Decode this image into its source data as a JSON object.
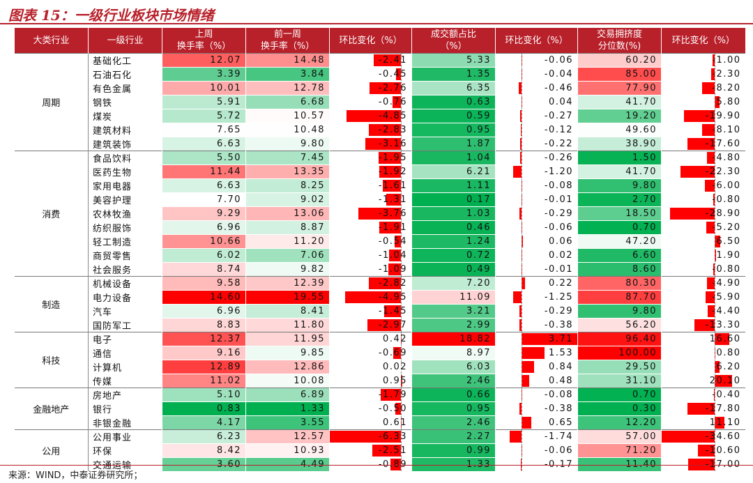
{
  "title": "图表 15：一级行业板块市场情绪",
  "source": "来源：WIND，中泰证券研究所；",
  "colors": {
    "accent": "#b8202a",
    "bar": "#ff0000"
  },
  "headers": [
    {
      "line1": "大类行业",
      "line2": ""
    },
    {
      "line1": "一级行业",
      "line2": ""
    },
    {
      "line1": "上周",
      "line2": "换手率（%）"
    },
    {
      "line1": "前一周",
      "line2": "换手率（%）"
    },
    {
      "line1": "环比变化（%）",
      "line2": ""
    },
    {
      "line1": "成交额占比",
      "line2": "（%）"
    },
    {
      "line1": "环比变化（%）",
      "line2": ""
    },
    {
      "line1": "交易拥挤度",
      "line2": "分位数(%)"
    },
    {
      "line1": "环比变化（%）",
      "line2": ""
    }
  ],
  "groups": [
    {
      "name": "周期",
      "rows": [
        {
          "name": "基础化工",
          "t1": "12.07",
          "t2": "14.48",
          "c1": "-2.41",
          "s": "5.33",
          "c2": "-0.06",
          "cr": "60.20",
          "c3": "-1.00"
        },
        {
          "name": "石油石化",
          "t1": "3.39",
          "t2": "3.84",
          "c1": "-0.45",
          "s": "1.35",
          "c2": "-0.04",
          "cr": "85.00",
          "c3": "-2.30"
        },
        {
          "name": "有色金属",
          "t1": "10.01",
          "t2": "12.78",
          "c1": "-2.76",
          "s": "6.35",
          "c2": "-0.46",
          "cr": "77.90",
          "c3": "-8.20"
        },
        {
          "name": "钢铁",
          "t1": "5.91",
          "t2": "6.68",
          "c1": "-0.76",
          "s": "0.63",
          "c2": "0.04",
          "cr": "41.70",
          "c3": "5.80"
        },
        {
          "name": "煤炭",
          "t1": "5.72",
          "t2": "10.57",
          "c1": "-4.85",
          "s": "0.59",
          "c2": "-0.27",
          "cr": "19.20",
          "c3": "-19.90"
        },
        {
          "name": "建筑材料",
          "t1": "7.65",
          "t2": "10.48",
          "c1": "-2.83",
          "s": "0.95",
          "c2": "-0.12",
          "cr": "49.60",
          "c3": "-8.10"
        },
        {
          "name": "建筑装饰",
          "t1": "6.63",
          "t2": "9.80",
          "c1": "-3.16",
          "s": "1.87",
          "c2": "-0.22",
          "cr": "38.90",
          "c3": "-17.60"
        }
      ]
    },
    {
      "name": "消费",
      "rows": [
        {
          "name": "食品饮料",
          "t1": "5.50",
          "t2": "7.45",
          "c1": "-1.95",
          "s": "1.04",
          "c2": "-0.26",
          "cr": "1.50",
          "c3": "-4.80"
        },
        {
          "name": "医药生物",
          "t1": "11.44",
          "t2": "13.35",
          "c1": "-1.92",
          "s": "6.21",
          "c2": "-1.20",
          "cr": "41.70",
          "c3": "-22.30"
        },
        {
          "name": "家用电器",
          "t1": "6.63",
          "t2": "8.25",
          "c1": "-1.61",
          "s": "1.11",
          "c2": "-0.08",
          "cr": "9.80",
          "c3": "-6.00"
        },
        {
          "name": "美容护理",
          "t1": "7.70",
          "t2": "9.02",
          "c1": "-1.31",
          "s": "0.17",
          "c2": "-0.01",
          "cr": "2.70",
          "c3": "-0.80"
        },
        {
          "name": "农林牧渔",
          "t1": "9.29",
          "t2": "13.06",
          "c1": "-3.76",
          "s": "1.03",
          "c2": "-0.29",
          "cr": "18.50",
          "c3": "-28.90"
        },
        {
          "name": "纺织服饰",
          "t1": "6.96",
          "t2": "8.87",
          "c1": "-1.91",
          "s": "0.46",
          "c2": "-0.06",
          "cr": "0.70",
          "c3": "-5.20"
        },
        {
          "name": "轻工制造",
          "t1": "10.66",
          "t2": "11.20",
          "c1": "-0.54",
          "s": "1.24",
          "c2": "0.06",
          "cr": "47.20",
          "c3": "6.50"
        },
        {
          "name": "商贸零售",
          "t1": "6.02",
          "t2": "7.06",
          "c1": "-1.04",
          "s": "0.72",
          "c2": "0.02",
          "cr": "6.60",
          "c3": "1.90"
        },
        {
          "name": "社会服务",
          "t1": "8.74",
          "t2": "9.82",
          "c1": "-1.09",
          "s": "0.49",
          "c2": "-0.01",
          "cr": "8.60",
          "c3": "-0.80"
        }
      ]
    },
    {
      "name": "制造",
      "rows": [
        {
          "name": "机械设备",
          "t1": "9.58",
          "t2": "12.39",
          "c1": "-2.82",
          "s": "7.20",
          "c2": "0.22",
          "cr": "80.30",
          "c3": "-4.90"
        },
        {
          "name": "电力设备",
          "t1": "14.60",
          "t2": "19.55",
          "c1": "-4.95",
          "s": "11.09",
          "c2": "-1.25",
          "cr": "87.70",
          "c3": "-5.90"
        },
        {
          "name": "汽车",
          "t1": "6.96",
          "t2": "8.41",
          "c1": "-1.45",
          "s": "3.21",
          "c2": "-0.29",
          "cr": "9.80",
          "c3": "-4.40"
        },
        {
          "name": "国防军工",
          "t1": "8.83",
          "t2": "11.80",
          "c1": "-2.97",
          "s": "2.99",
          "c2": "-0.38",
          "cr": "56.20",
          "c3": "-13.30"
        }
      ]
    },
    {
      "name": "科技",
      "rows": [
        {
          "name": "电子",
          "t1": "12.37",
          "t2": "11.95",
          "c1": "0.42",
          "s": "18.82",
          "c2": "3.71",
          "cr": "96.40",
          "c3": "16.60"
        },
        {
          "name": "通信",
          "t1": "9.16",
          "t2": "9.85",
          "c1": "-0.69",
          "s": "8.97",
          "c2": "1.53",
          "cr": "100.00",
          "c3": "0.80"
        },
        {
          "name": "计算机",
          "t1": "12.89",
          "t2": "12.86",
          "c1": "0.02",
          "s": "6.03",
          "c2": "0.84",
          "cr": "29.50",
          "c3": "6.20"
        },
        {
          "name": "传媒",
          "t1": "11.02",
          "t2": "10.08",
          "c1": "0.95",
          "s": "2.46",
          "c2": "0.48",
          "cr": "31.10",
          "c3": "20.10"
        }
      ]
    },
    {
      "name": "金融地产",
      "rows": [
        {
          "name": "房地产",
          "t1": "5.10",
          "t2": "6.89",
          "c1": "-1.79",
          "s": "0.66",
          "c2": "-0.08",
          "cr": "0.70",
          "c3": "-0.40"
        },
        {
          "name": "银行",
          "t1": "0.83",
          "t2": "1.33",
          "c1": "-0.50",
          "s": "0.95",
          "c2": "-0.38",
          "cr": "0.30",
          "c3": "-17.80"
        },
        {
          "name": "非银金融",
          "t1": "4.17",
          "t2": "3.55",
          "c1": "0.61",
          "s": "2.46",
          "c2": "0.65",
          "cr": "12.20",
          "c3": "11.10"
        }
      ]
    },
    {
      "name": "公用",
      "rows": [
        {
          "name": "公用事业",
          "t1": "6.23",
          "t2": "12.57",
          "c1": "-6.33",
          "s": "2.27",
          "c2": "-1.74",
          "cr": "57.00",
          "c3": "-34.60"
        },
        {
          "name": "环保",
          "t1": "8.42",
          "t2": "10.93",
          "c1": "-2.51",
          "s": "0.99",
          "c2": "-0.06",
          "cr": "71.20",
          "c3": "-10.60"
        },
        {
          "name": "交通运输",
          "t1": "3.60",
          "t2": "4.49",
          "c1": "-0.89",
          "s": "1.33",
          "c2": "-0.17",
          "cr": "11.40",
          "c3": "-17.00"
        }
      ]
    }
  ]
}
